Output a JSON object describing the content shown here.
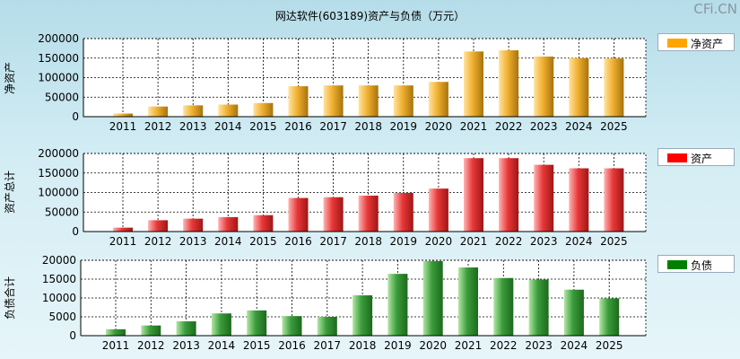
{
  "title": "网达软件(603189)资产与负债（万元）",
  "logo": "CFi.CN",
  "chart_data": [
    {
      "type": "bar",
      "ylabel": "净资产",
      "legend": "净资产",
      "legend_color": "#ffa500",
      "categories": [
        "2011",
        "2012",
        "2013",
        "2014",
        "2015",
        "2016",
        "2017",
        "2018",
        "2019",
        "2020",
        "2021",
        "2022",
        "2023",
        "2024",
        "2025"
      ],
      "values": [
        8000,
        26000,
        29000,
        31000,
        35000,
        78000,
        80000,
        80000,
        80000,
        89000,
        167000,
        170000,
        154000,
        150000,
        149000
      ],
      "ylim": [
        0,
        200000
      ],
      "yticks": [
        "0",
        "50000",
        "100000",
        "150000",
        "200000"
      ],
      "grid": true
    },
    {
      "type": "bar",
      "ylabel": "资产总计",
      "legend": "资产",
      "legend_color": "#ff0000",
      "categories": [
        "2011",
        "2012",
        "2013",
        "2014",
        "2015",
        "2016",
        "2017",
        "2018",
        "2019",
        "2020",
        "2021",
        "2022",
        "2023",
        "2024",
        "2025"
      ],
      "values": [
        10000,
        29000,
        33000,
        37000,
        42000,
        86000,
        88000,
        92000,
        99000,
        110000,
        188000,
        188000,
        171000,
        162000,
        162000
      ],
      "ylim": [
        0,
        200000
      ],
      "yticks": [
        "0",
        "50000",
        "100000",
        "150000",
        "200000"
      ],
      "grid": true
    },
    {
      "type": "bar",
      "ylabel": "负债合计",
      "legend": "负债",
      "legend_color": "#008000",
      "categories": [
        "2011",
        "2012",
        "2013",
        "2014",
        "2015",
        "2016",
        "2017",
        "2018",
        "2019",
        "2020",
        "2021",
        "2022",
        "2023",
        "2024",
        "2025"
      ],
      "values": [
        1700,
        2700,
        3800,
        5900,
        6700,
        5200,
        5000,
        10700,
        16400,
        19800,
        18100,
        15300,
        14900,
        12200,
        9900
      ],
      "ylim": [
        0,
        20000
      ],
      "yticks": [
        "0",
        "5000",
        "10000",
        "15000",
        "20000"
      ],
      "grid": true
    }
  ]
}
